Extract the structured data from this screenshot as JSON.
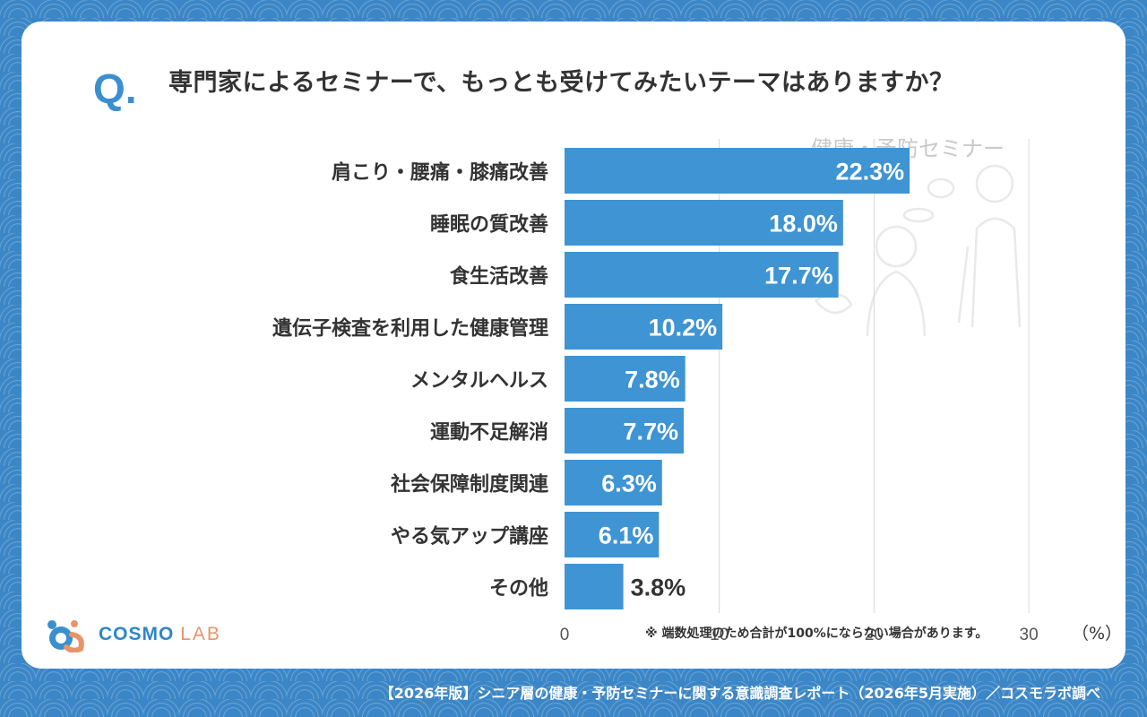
{
  "question": {
    "mark": "Q.",
    "text": "専門家によるセミナーで、もっとも受けてみたいテーマはありますか？"
  },
  "watermark": {
    "title": "健康・予防セミナー"
  },
  "chart_data": {
    "type": "bar",
    "orientation": "horizontal",
    "categories": [
      "肩こり・腰痛・膝痛改善",
      "睡眠の質改善",
      "食生活改善",
      "遺伝子検査を利用した健康管理",
      "メンタルヘルス",
      "運動不足解消",
      "社会保障制度関連",
      "やる気アップ講座",
      "その他"
    ],
    "values": [
      22.3,
      18.0,
      17.7,
      10.2,
      7.8,
      7.7,
      6.3,
      6.1,
      3.8
    ],
    "value_labels": [
      "22.3%",
      "18.0%",
      "17.7%",
      "10.2%",
      "7.8%",
      "7.7%",
      "6.3%",
      "6.1%",
      "3.8%"
    ],
    "xlim": [
      0,
      30
    ],
    "x_ticks": [
      "0",
      "10",
      "20",
      "30"
    ],
    "unit": "（%）",
    "grid": true,
    "bar_color": "#3f94d3",
    "label_color_inside": "#ffffff",
    "label_color_outside": "#333333"
  },
  "note": "※ 端数処理のため合計が100%にならない場合があります。",
  "logo": {
    "main": "COSMO",
    "sub": "LAB"
  },
  "footer": "【2026年版】シニア層の健康・予防セミナーに関する意識調査レポート（2026年5月実施）／コスモラボ調べ",
  "colors": {
    "background": "#3b86c6",
    "card": "#ffffff",
    "accent": "#3a8fd0",
    "logo_orange": "#e8946a"
  }
}
